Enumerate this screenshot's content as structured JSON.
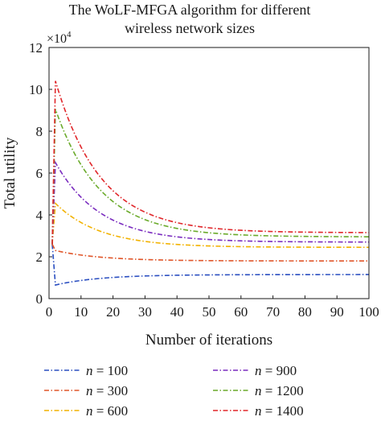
{
  "chart_data": {
    "type": "line",
    "title_line1": "The WoLF-MFGA algorithm for different",
    "title_line2": "wireless network sizes",
    "xlabel": "Number of iterations",
    "ylabel": "Total utility",
    "y_multiplier": "×10",
    "y_multiplier_exp": "4",
    "xlim": [
      0,
      100
    ],
    "ylim": [
      0,
      12
    ],
    "xticks": [
      "0",
      "10",
      "20",
      "30",
      "40",
      "50",
      "60",
      "70",
      "80",
      "90",
      "100"
    ],
    "yticks": [
      "0",
      "2",
      "4",
      "6",
      "8",
      "10",
      "12"
    ],
    "grid": false,
    "legend_position": "bottom",
    "series": [
      {
        "var": "n",
        "eq": " = 100",
        "color": "#2a4ec0",
        "start": 2.6,
        "peak": 0.65,
        "end": 1.15
      },
      {
        "var": "n",
        "eq": " = 300",
        "color": "#e0562a",
        "start": 2.6,
        "peak": 2.3,
        "end": 1.8
      },
      {
        "var": "n",
        "eq": " = 600",
        "color": "#f2b200",
        "start": 2.6,
        "peak": 4.55,
        "end": 2.45
      },
      {
        "var": "n",
        "eq": " = 900",
        "color": "#7a2cbf",
        "start": 2.6,
        "peak": 6.5,
        "end": 2.7
      },
      {
        "var": "n",
        "eq": " = 1200",
        "color": "#6aaa2a",
        "start": 2.6,
        "peak": 9.05,
        "end": 2.95
      },
      {
        "var": "n",
        "eq": " = 1400",
        "color": "#e0262a",
        "start": 2.6,
        "peak": 10.4,
        "end": 3.15
      }
    ]
  }
}
